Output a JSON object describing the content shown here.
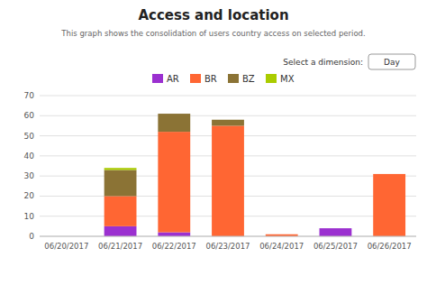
{
  "chart_data": {
    "type": "bar",
    "stacked": true,
    "title": "Access and location",
    "subtitle": "This graph shows the consolidation of users country access on selected period.",
    "annotations": [
      "Select a dimension:",
      "Day"
    ],
    "categories": [
      "06/20/2017",
      "06/21/2017",
      "06/22/2017",
      "06/23/2017",
      "06/24/2017",
      "06/25/2017",
      "06/26/2017"
    ],
    "series": [
      {
        "name": "AR",
        "color": "#9b30d0",
        "values": [
          0,
          5,
          2,
          0,
          0,
          4,
          0
        ]
      },
      {
        "name": "BR",
        "color": "#ff6633",
        "values": [
          0,
          15,
          50,
          55,
          1,
          0,
          31
        ]
      },
      {
        "name": "BZ",
        "color": "#8b7335",
        "values": [
          0,
          13,
          9,
          3,
          0,
          0,
          0
        ]
      },
      {
        "name": "MX",
        "color": "#aacc00",
        "values": [
          0,
          1,
          0,
          0,
          0,
          0,
          0
        ]
      }
    ],
    "ylim": [
      0,
      70
    ],
    "yticks": [
      0,
      10,
      20,
      30,
      40,
      50,
      60,
      70
    ],
    "grid": true,
    "legend": "top"
  }
}
